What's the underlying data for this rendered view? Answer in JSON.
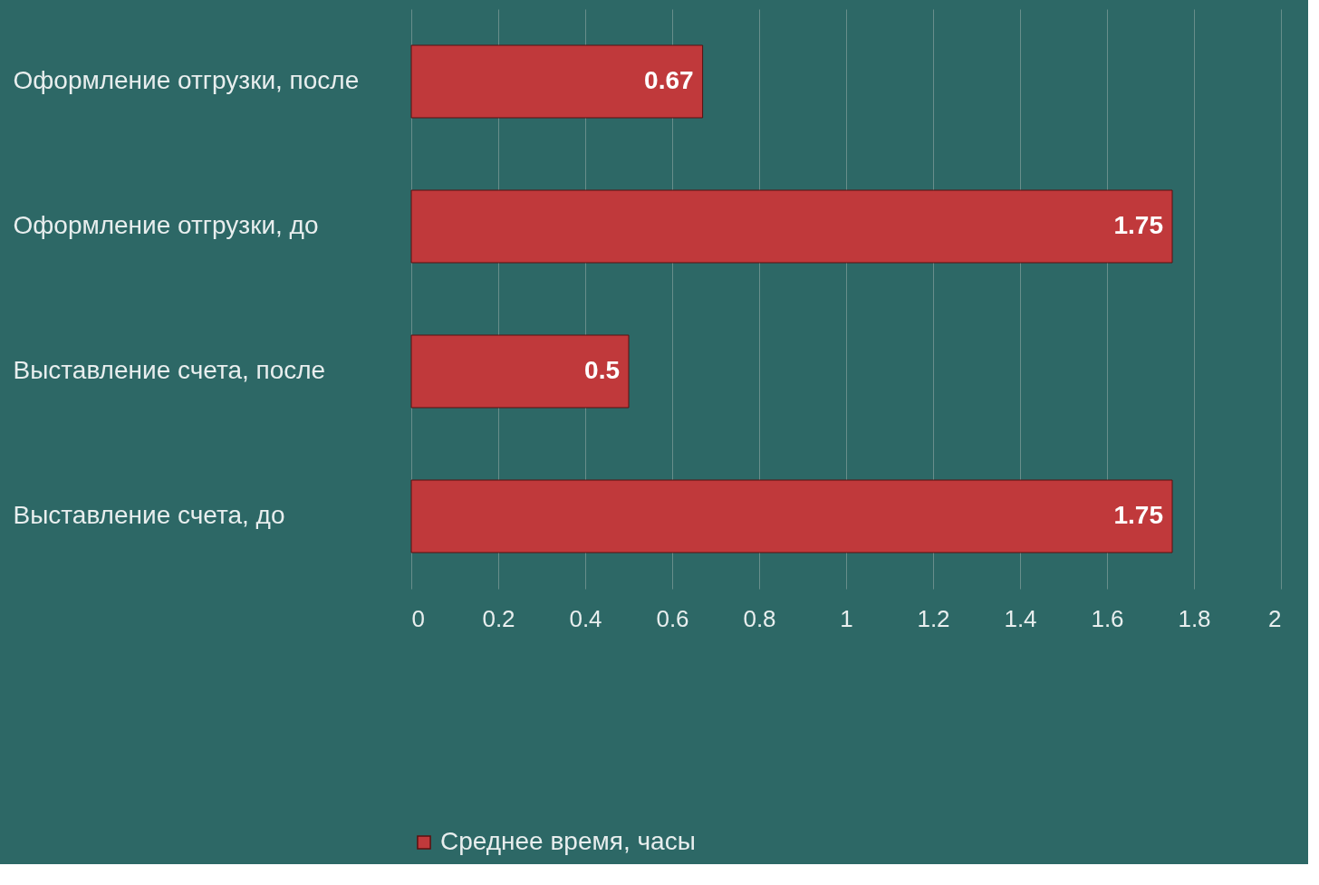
{
  "chart_data": {
    "type": "bar",
    "orientation": "horizontal",
    "categories": [
      "Оформление отгрузки, после",
      "Оформление отгрузки, до",
      "Выставление счета, после",
      "Выставление счета, до"
    ],
    "series": [
      {
        "name": "Среднее время, часы",
        "color": "#c0393b",
        "values": [
          0.67,
          1.75,
          0.5,
          1.75
        ]
      }
    ],
    "xlim": [
      0,
      2
    ],
    "xticks": [
      0,
      0.2,
      0.4,
      0.6,
      0.8,
      1,
      1.2,
      1.4,
      1.6,
      1.8,
      2
    ],
    "grid": "x",
    "legend": "bottom",
    "data_labels": true
  }
}
